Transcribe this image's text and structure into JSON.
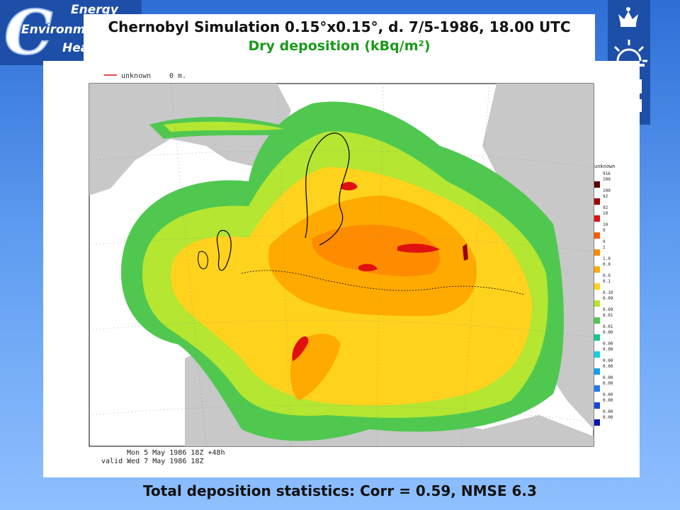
{
  "logo_left": {
    "letter": "C",
    "words": [
      "Energy",
      "Environment",
      "Health"
    ]
  },
  "title": {
    "line1": "Chernobyl Simulation 0.15°x0.15°, d. 7/5-1986, 18.00 UTC",
    "line2": "Dry deposition (kBq/m²)"
  },
  "map": {
    "legend_line": {
      "label": "unknown",
      "value": "0 m."
    },
    "scale_header": "unknown",
    "scale": [
      {
        "top": "916",
        "bottom": "100",
        "color": "#5a0000"
      },
      {
        "top": "100",
        "bottom": "92",
        "color": "#9b0000"
      },
      {
        "top": "92",
        "bottom": "10",
        "color": "#e01010"
      },
      {
        "top": "10",
        "bottom": "9",
        "color": "#ff5a00"
      },
      {
        "top": "9",
        "bottom": "1",
        "color": "#ff8c00"
      },
      {
        "top": "1.0",
        "bottom": "0.9",
        "color": "#ffaa00"
      },
      {
        "top": "0.9",
        "bottom": "0.1",
        "color": "#ffd21e"
      },
      {
        "top": "0.10",
        "bottom": "0.09",
        "color": "#b4e632"
      },
      {
        "top": "0.09",
        "bottom": "0.01",
        "color": "#50c850"
      },
      {
        "top": "0.01",
        "bottom": "0.00",
        "color": "#14c88c"
      },
      {
        "top": "0.00",
        "bottom": "0.00",
        "color": "#14d2e6"
      },
      {
        "top": "0.00",
        "bottom": "0.00",
        "color": "#14a0f0"
      },
      {
        "top": "0.00",
        "bottom": "0.00",
        "color": "#1e78f0"
      },
      {
        "top": "0.00",
        "bottom": "0.00",
        "color": "#1446dc"
      },
      {
        "top": "0.00",
        "bottom": "0.00",
        "color": "#0a14b4"
      }
    ],
    "timestamp": {
      "line1": "Mon  5 May 1986 18Z +48h",
      "line2": "valid Wed  7 May 1986 18Z"
    },
    "colors": {
      "sea": "#ffffff",
      "land_outside": "#c8c8c8",
      "coast": "#000000"
    }
  },
  "footer": "Total deposition statistics: Corr = 0.59, NMSE 6.3"
}
